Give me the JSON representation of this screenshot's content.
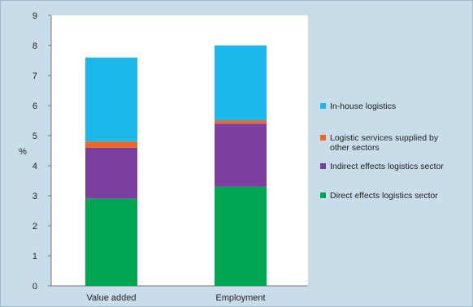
{
  "chart_data": {
    "type": "bar",
    "stacked": true,
    "categories": [
      "Value added",
      "Employment"
    ],
    "series": [
      {
        "name": "Direct effects logistics sector",
        "values": [
          2.9,
          3.3
        ],
        "color": "#00a651"
      },
      {
        "name": "Indirect effects logistics sector",
        "values": [
          1.7,
          2.1
        ],
        "color": "#7b3fa0"
      },
      {
        "name": "Logistic services supplied by other sectors",
        "values": [
          0.2,
          0.1
        ],
        "color": "#f26522"
      },
      {
        "name": "In-house logistics",
        "values": [
          2.8,
          2.5
        ],
        "color": "#1cb8ec"
      }
    ],
    "ylabel": "%",
    "ylim": [
      0,
      9
    ],
    "yticks": [
      "0",
      "1",
      "2",
      "3",
      "4",
      "5",
      "6",
      "7",
      "8",
      "9"
    ],
    "legend_position": "right",
    "grid": false
  }
}
